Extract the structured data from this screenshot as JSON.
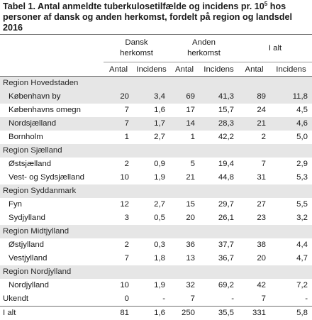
{
  "title": {
    "part1": "Tabel 1. Antal anmeldte tuberkulosetilfælde og incidens pr. 10",
    "superscript": "5",
    "part2": " hos personer af dansk og anden herkomst, fordelt på region og landsdel 2016"
  },
  "header": {
    "groups": [
      {
        "line1": "Dansk",
        "line2": "herkomst"
      },
      {
        "line1": "Anden",
        "line2": "herkomst"
      },
      {
        "line1": "I alt",
        "line2": ""
      }
    ],
    "sub_labels": [
      "Antal",
      "Incidens",
      "Antal",
      "Incidens",
      "Antal",
      "Incidens"
    ]
  },
  "rows": [
    {
      "kind": "region",
      "name": "Region Hovedstaden"
    },
    {
      "kind": "sub",
      "shaded": true,
      "name": "København by",
      "values": [
        "20",
        "3,4",
        "69",
        "41,3",
        "89",
        "11,8"
      ]
    },
    {
      "kind": "sub",
      "shaded": false,
      "name": "Københavns omegn",
      "values": [
        "7",
        "1,6",
        "17",
        "15,7",
        "24",
        "4,5"
      ]
    },
    {
      "kind": "sub",
      "shaded": true,
      "name": "Nordsjælland",
      "values": [
        "7",
        "1,7",
        "14",
        "28,3",
        "21",
        "4,6"
      ]
    },
    {
      "kind": "sub",
      "shaded": false,
      "name": "Bornholm",
      "values": [
        "1",
        "2,7",
        "1",
        "42,2",
        "2",
        "5,0"
      ]
    },
    {
      "kind": "region",
      "name": "Region Sjælland"
    },
    {
      "kind": "sub",
      "shaded": false,
      "name": "Østsjælland",
      "values": [
        "2",
        "0,9",
        "5",
        "19,4",
        "7",
        "2,9"
      ]
    },
    {
      "kind": "sub",
      "shaded": false,
      "name": "Vest- og Sydsjælland",
      "values": [
        "10",
        "1,9",
        "21",
        "44,8",
        "31",
        "5,3"
      ]
    },
    {
      "kind": "region",
      "name": "Region Syddanmark"
    },
    {
      "kind": "sub",
      "shaded": false,
      "name": "Fyn",
      "values": [
        "12",
        "2,7",
        "15",
        "29,7",
        "27",
        "5,5"
      ]
    },
    {
      "kind": "sub",
      "shaded": false,
      "name": "Sydjylland",
      "values": [
        "3",
        "0,5",
        "20",
        "26,1",
        "23",
        "3,2"
      ]
    },
    {
      "kind": "region",
      "name": "Region Midtjylland"
    },
    {
      "kind": "sub",
      "shaded": false,
      "name": "Østjylland",
      "values": [
        "2",
        "0,3",
        "36",
        "37,7",
        "38",
        "4,4"
      ]
    },
    {
      "kind": "sub",
      "shaded": false,
      "name": "Vestjylland",
      "values": [
        "7",
        "1,8",
        "13",
        "36,7",
        "20",
        "4,7"
      ]
    },
    {
      "kind": "region",
      "name": "Region Nordjylland"
    },
    {
      "kind": "sub",
      "shaded": false,
      "name": "Nordjylland",
      "values": [
        "10",
        "1,9",
        "32",
        "69,2",
        "42",
        "7,2"
      ]
    },
    {
      "kind": "plain",
      "name": "Ukendt",
      "values": [
        "0",
        "-",
        "7",
        "-",
        "7",
        "-"
      ]
    },
    {
      "kind": "total",
      "name": "I alt",
      "values": [
        "81",
        "1,6",
        "250",
        "35,5",
        "331",
        "5,8"
      ]
    }
  ]
}
